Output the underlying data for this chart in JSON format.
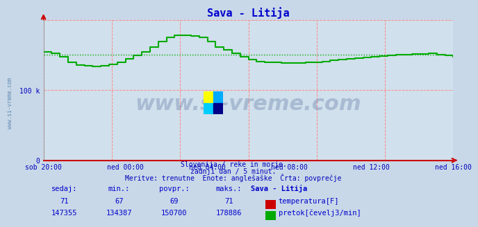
{
  "title": "Sava - Litija",
  "title_color": "#0000cc",
  "bg_color": "#c8d8e8",
  "plot_bg_color": "#d0e0ec",
  "grid_color": "#ff8888",
  "xlabel_ticks": [
    "sob 20:00",
    "ned 00:00",
    "ned 04:00",
    "ned 08:00",
    "ned 12:00",
    "ned 16:00"
  ],
  "ytick_labels": [
    "0",
    "100 k"
  ],
  "ytick_positions": [
    0,
    100000
  ],
  "ymax": 200000,
  "ymin": 0,
  "avg_flow": 150700,
  "avg_temp": 69,
  "subtitle_lines": [
    "Slovenija / reke in morje.",
    "zadnji dan / 5 minut.",
    "Meritve: trenutne  Enote: anglešaške  Črta: povprečje"
  ],
  "table_headers": [
    "sedaj:",
    "min.:",
    "povpr.:",
    "maks.:",
    "Sava - Litija"
  ],
  "table_temp": [
    "71",
    "67",
    "69",
    "71"
  ],
  "table_flow": [
    "147355",
    "134387",
    "150700",
    "178886"
  ],
  "legend_temp": "temperatura[F]",
  "legend_flow": "pretok[čevelj3/min]",
  "temp_color": "#cc0000",
  "flow_color": "#00aa00",
  "watermark_text": "www.si-vreme.com",
  "watermark_color": "#1a3a7a",
  "watermark_alpha": 0.22,
  "tick_color": "#0000bb",
  "flow_data_x": [
    0.0,
    0.02,
    0.04,
    0.06,
    0.08,
    0.1,
    0.12,
    0.14,
    0.16,
    0.18,
    0.2,
    0.22,
    0.24,
    0.26,
    0.28,
    0.3,
    0.32,
    0.34,
    0.36,
    0.38,
    0.4,
    0.42,
    0.44,
    0.46,
    0.48,
    0.5,
    0.52,
    0.54,
    0.56,
    0.58,
    0.6,
    0.62,
    0.64,
    0.66,
    0.68,
    0.7,
    0.72,
    0.74,
    0.76,
    0.78,
    0.8,
    0.82,
    0.84,
    0.86,
    0.88,
    0.9,
    0.92,
    0.94,
    0.96,
    0.98,
    1.0
  ],
  "flow_data_y": [
    155000,
    153000,
    148000,
    140000,
    136000,
    134500,
    134387,
    135000,
    136500,
    140000,
    145000,
    150000,
    155000,
    162000,
    170000,
    175000,
    178000,
    178886,
    177000,
    175000,
    170000,
    162000,
    158000,
    153000,
    148000,
    144000,
    141000,
    140000,
    139500,
    139000,
    139000,
    139000,
    139500,
    140000,
    141000,
    143000,
    144000,
    145000,
    146000,
    147000,
    148000,
    149000,
    150000,
    150500,
    151000,
    151500,
    152000,
    152500,
    151000,
    150000,
    147355
  ]
}
